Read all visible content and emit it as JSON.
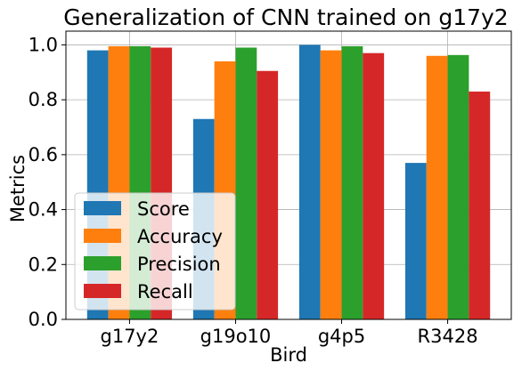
{
  "chart_data": {
    "type": "bar",
    "title": "Generalization of CNN trained on g17y2",
    "xlabel": "Bird",
    "ylabel": "Metrics",
    "categories": [
      "g17y2",
      "g19o10",
      "g4p5",
      "R3428"
    ],
    "series": [
      {
        "name": "Score",
        "color": "#1f77b4",
        "values": [
          0.98,
          0.73,
          1.0,
          0.57
        ]
      },
      {
        "name": "Accuracy",
        "color": "#ff7f0e",
        "values": [
          0.995,
          0.94,
          0.98,
          0.96
        ]
      },
      {
        "name": "Precision",
        "color": "#2ca02c",
        "values": [
          0.995,
          0.99,
          0.995,
          0.963
        ]
      },
      {
        "name": "Recall",
        "color": "#d62728",
        "values": [
          0.99,
          0.905,
          0.97,
          0.83
        ]
      }
    ],
    "ylim": [
      0,
      1.05
    ],
    "yticks": [
      0.0,
      0.2,
      0.4,
      0.6,
      0.8,
      1.0
    ],
    "ytick_labels": [
      "0.0",
      "0.2",
      "0.4",
      "0.6",
      "0.8",
      "1.0"
    ],
    "grid": true,
    "legend_position": "lower-left"
  }
}
